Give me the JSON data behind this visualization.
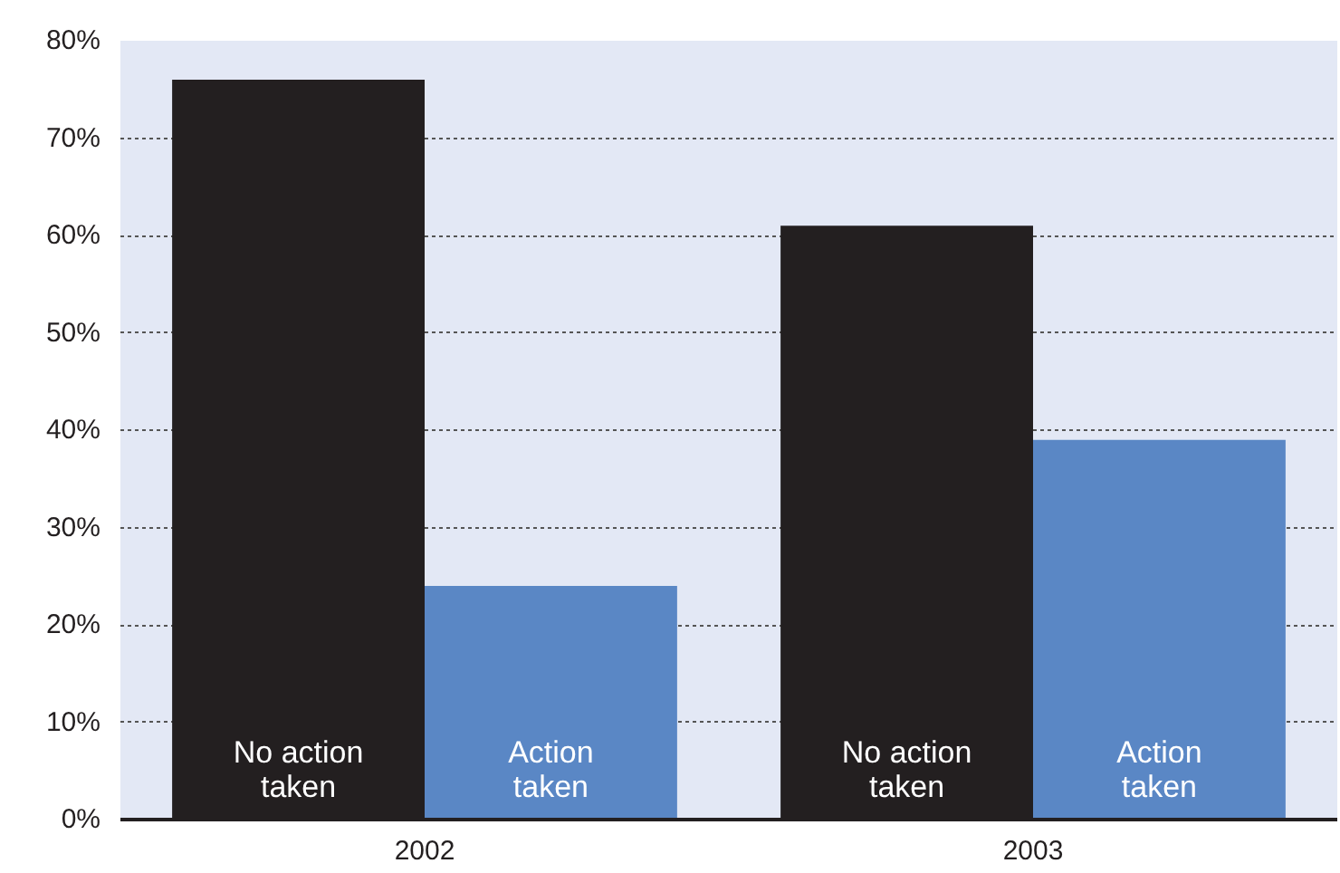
{
  "chart_data": {
    "type": "bar",
    "categories": [
      "2002",
      "2003"
    ],
    "series": [
      {
        "name": "No action taken",
        "color": "#231f20",
        "values": [
          76,
          61
        ]
      },
      {
        "name": "Action taken",
        "color": "#5a87c5",
        "values": [
          24,
          39
        ]
      }
    ],
    "ylim": [
      0,
      80
    ],
    "yticks": [
      {
        "value": 0,
        "label": "0%"
      },
      {
        "value": 10,
        "label": "10%"
      },
      {
        "value": 20,
        "label": "20%"
      },
      {
        "value": 30,
        "label": "30%"
      },
      {
        "value": 40,
        "label": "40%"
      },
      {
        "value": 50,
        "label": "50%"
      },
      {
        "value": 60,
        "label": "60%"
      },
      {
        "value": 70,
        "label": "70%"
      },
      {
        "value": 80,
        "label": "80%"
      }
    ],
    "grid": "y",
    "legend": false
  }
}
